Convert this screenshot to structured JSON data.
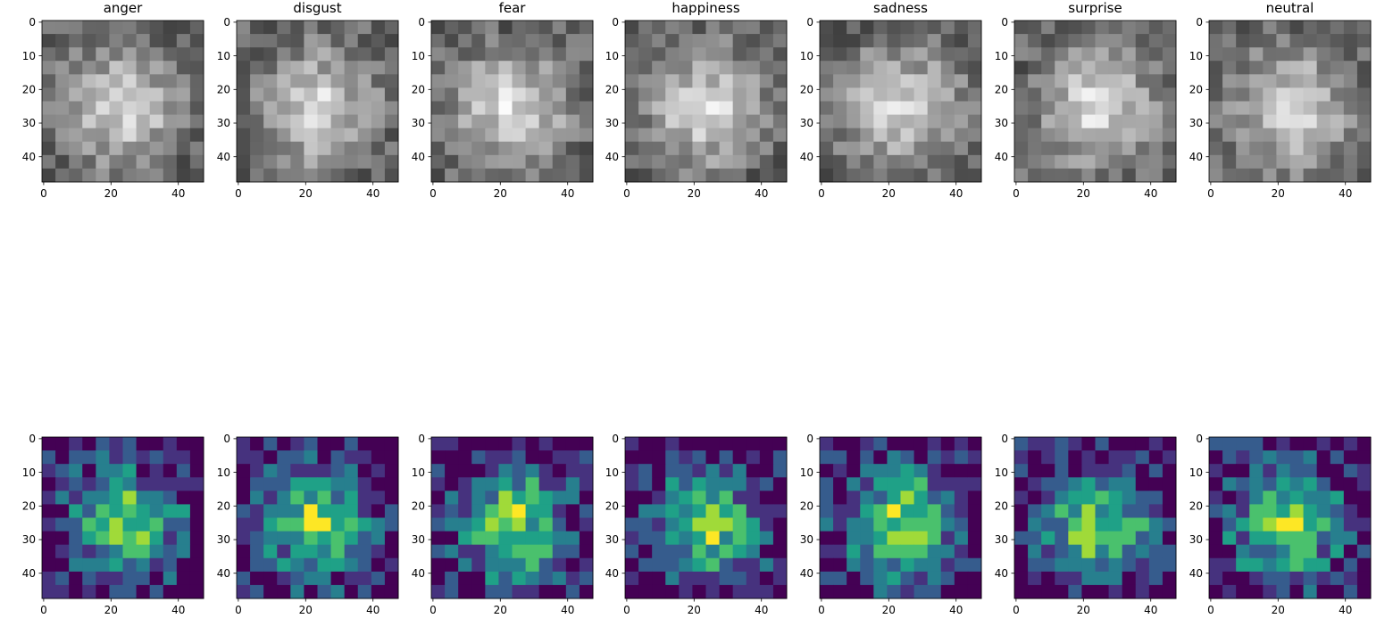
{
  "chart_data": {
    "type": "image-grid",
    "rows": 2,
    "columns": 7,
    "categories": [
      "anger",
      "disgust",
      "fear",
      "happiness",
      "sadness",
      "surprise",
      "neutral"
    ],
    "row_colormaps": [
      "gray",
      "viridis"
    ],
    "image_size": [
      48,
      48
    ],
    "x_ticks": [
      0,
      20,
      40
    ],
    "y_ticks": [
      0,
      10,
      20,
      30,
      40
    ],
    "xlim": [
      -0.5,
      47.5
    ],
    "ylim": [
      47.5,
      -0.5
    ],
    "grid": false,
    "legend": "none"
  }
}
